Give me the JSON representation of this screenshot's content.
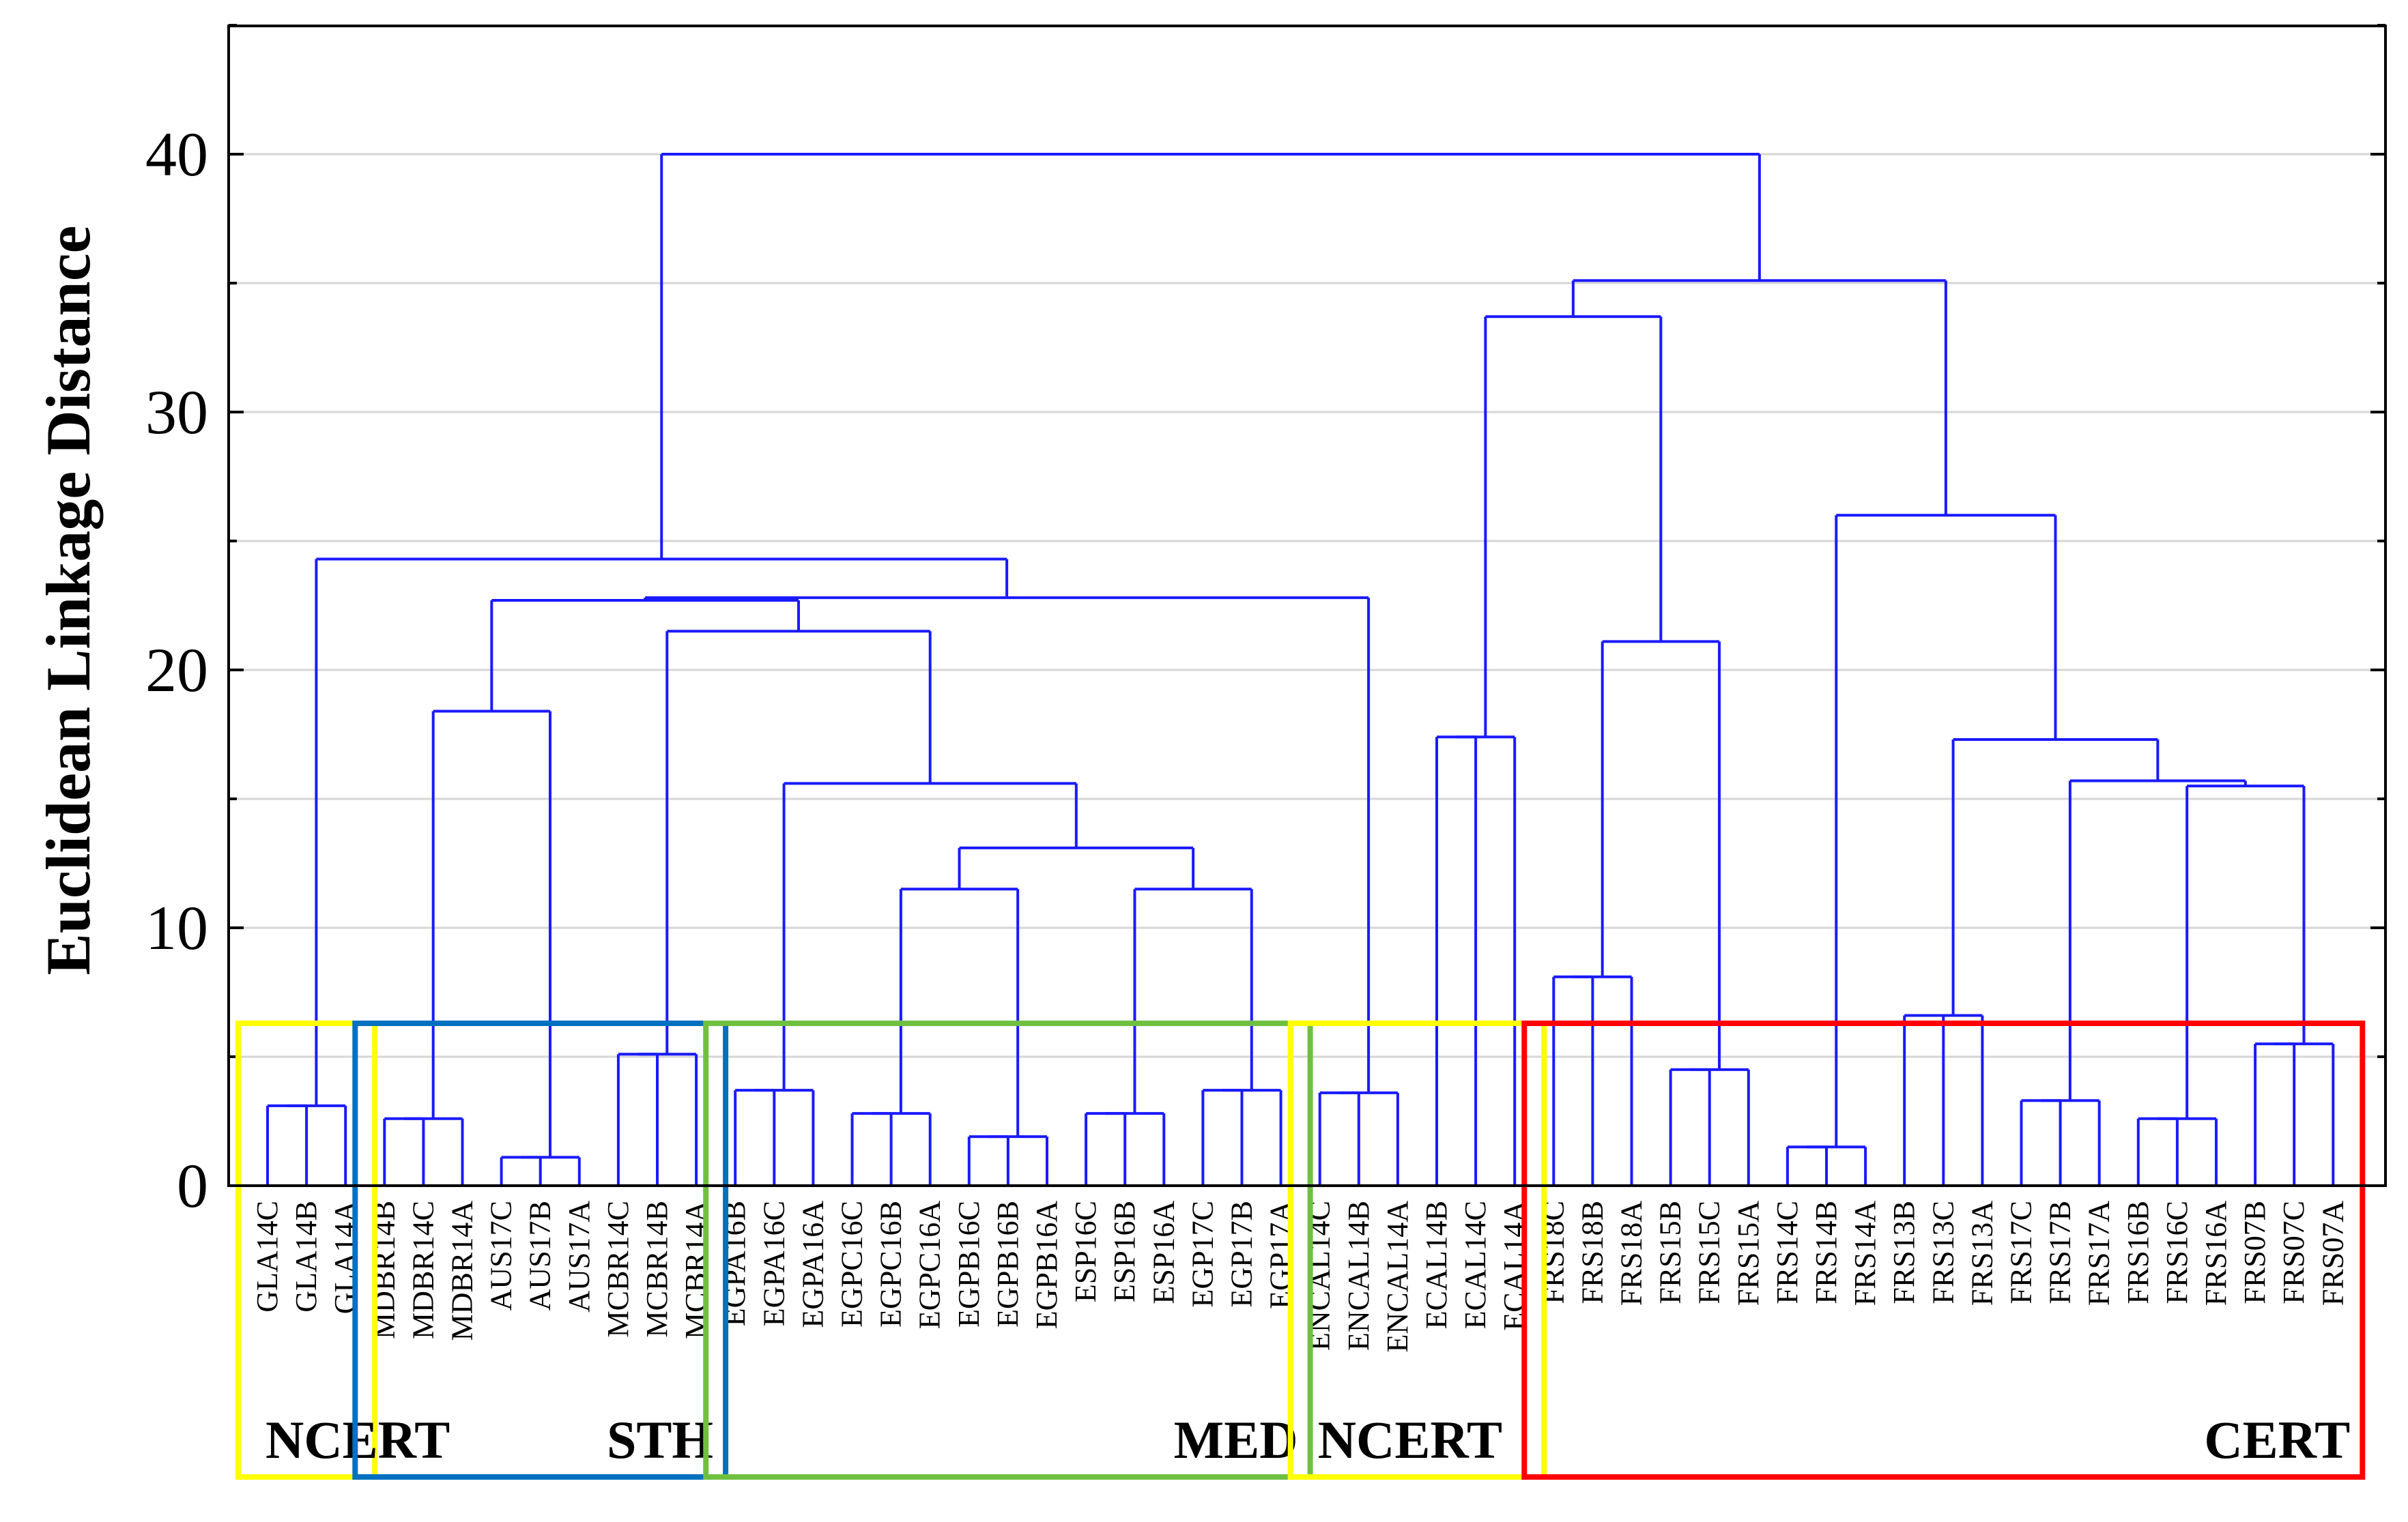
{
  "chart_data": {
    "type": "dendrogram",
    "ylabel": "Euclidean Linkage Distance",
    "ylim": [
      0,
      45
    ],
    "yticks": [
      "0",
      "10",
      "20",
      "30",
      "40"
    ],
    "grid": true,
    "line_color": "#1a1aff",
    "leaves": [
      "GLA14C",
      "GLA14B",
      "GLA14A",
      "MDBR14B",
      "MDBR14C",
      "MDBR14A",
      "AUS17C",
      "AUS17B",
      "AUS17A",
      "MCBR14C",
      "MCBR14B",
      "MCBR14A",
      "EGPA16B",
      "EGPA16C",
      "EGPA16A",
      "EGPC16C",
      "EGPC16B",
      "EGPC16A",
      "EGPB16C",
      "EGPB16B",
      "EGPB16A",
      "ESP16C",
      "ESP16B",
      "ESP16A",
      "EGP17C",
      "EGP17B",
      "EGP17A",
      "ENCAL14C",
      "ENCAL14B",
      "ENCAL14A",
      "ECAL14B",
      "ECAL14C",
      "ECAL14A",
      "FRS18C",
      "FRS18B",
      "FRS18A",
      "FRS15B",
      "FRS15C",
      "FRS15A",
      "FRS14C",
      "FRS14B",
      "FRS14A",
      "FRS13B",
      "FRS13C",
      "FRS13A",
      "FRS17C",
      "FRS17B",
      "FRS17A",
      "FRS16B",
      "FRS16C",
      "FRS16A",
      "FRS07B",
      "FRS07C",
      "FRS07A"
    ],
    "merges": [
      [
        0,
        1,
        3.1
      ],
      [
        2,
        54,
        3.1
      ],
      [
        3,
        4,
        2.6
      ],
      [
        5,
        56,
        2.6
      ],
      [
        6,
        7,
        1.1
      ],
      [
        8,
        58,
        1.1
      ],
      [
        57,
        59,
        18.4
      ],
      [
        9,
        10,
        5.1
      ],
      [
        11,
        61,
        5.1
      ],
      [
        12,
        13,
        3.7
      ],
      [
        14,
        63,
        3.7
      ],
      [
        15,
        16,
        2.8
      ],
      [
        17,
        65,
        2.8
      ],
      [
        18,
        19,
        1.9
      ],
      [
        20,
        67,
        1.9
      ],
      [
        66,
        68,
        11.5
      ],
      [
        21,
        22,
        2.8
      ],
      [
        23,
        70,
        2.8
      ],
      [
        24,
        25,
        3.7
      ],
      [
        26,
        72,
        3.7
      ],
      [
        71,
        73,
        11.5
      ],
      [
        69,
        74,
        13.1
      ],
      [
        64,
        75,
        15.6
      ],
      [
        62,
        76,
        21.5
      ],
      [
        60,
        77,
        22.7
      ],
      [
        27,
        28,
        3.6
      ],
      [
        29,
        79,
        3.6
      ],
      [
        78,
        80,
        22.8
      ],
      [
        55,
        81,
        24.3
      ],
      [
        30,
        31,
        17.4
      ],
      [
        32,
        83,
        17.4
      ],
      [
        33,
        34,
        8.1
      ],
      [
        35,
        85,
        8.1
      ],
      [
        36,
        37,
        4.5
      ],
      [
        38,
        87,
        4.5
      ],
      [
        86,
        88,
        21.1
      ],
      [
        84,
        89,
        33.7
      ],
      [
        39,
        40,
        1.5
      ],
      [
        41,
        91,
        1.5
      ],
      [
        42,
        43,
        6.6
      ],
      [
        44,
        93,
        6.6
      ],
      [
        45,
        46,
        3.3
      ],
      [
        47,
        95,
        3.3
      ],
      [
        48,
        49,
        2.6
      ],
      [
        50,
        97,
        2.6
      ],
      [
        51,
        52,
        5.5
      ],
      [
        53,
        99,
        5.5
      ],
      [
        98,
        100,
        15.5
      ],
      [
        96,
        101,
        15.7
      ],
      [
        94,
        102,
        17.3
      ],
      [
        92,
        103,
        26.0
      ],
      [
        90,
        104,
        35.1
      ],
      [
        82,
        105,
        40.0
      ]
    ],
    "groups": [
      {
        "label": "NCERT",
        "color": "#ffff00",
        "first": 0,
        "last": 2
      },
      {
        "label": "STH",
        "color": "#0070c0",
        "first": 3,
        "last": 11
      },
      {
        "label": "MED",
        "color": "#70c040",
        "first": 12,
        "last": 26
      },
      {
        "label": "NCERT",
        "color": "#ffff00",
        "first": 27,
        "last": 32
      },
      {
        "label": "CERT",
        "color": "#ff0000",
        "first": 33,
        "last": 53
      }
    ]
  }
}
